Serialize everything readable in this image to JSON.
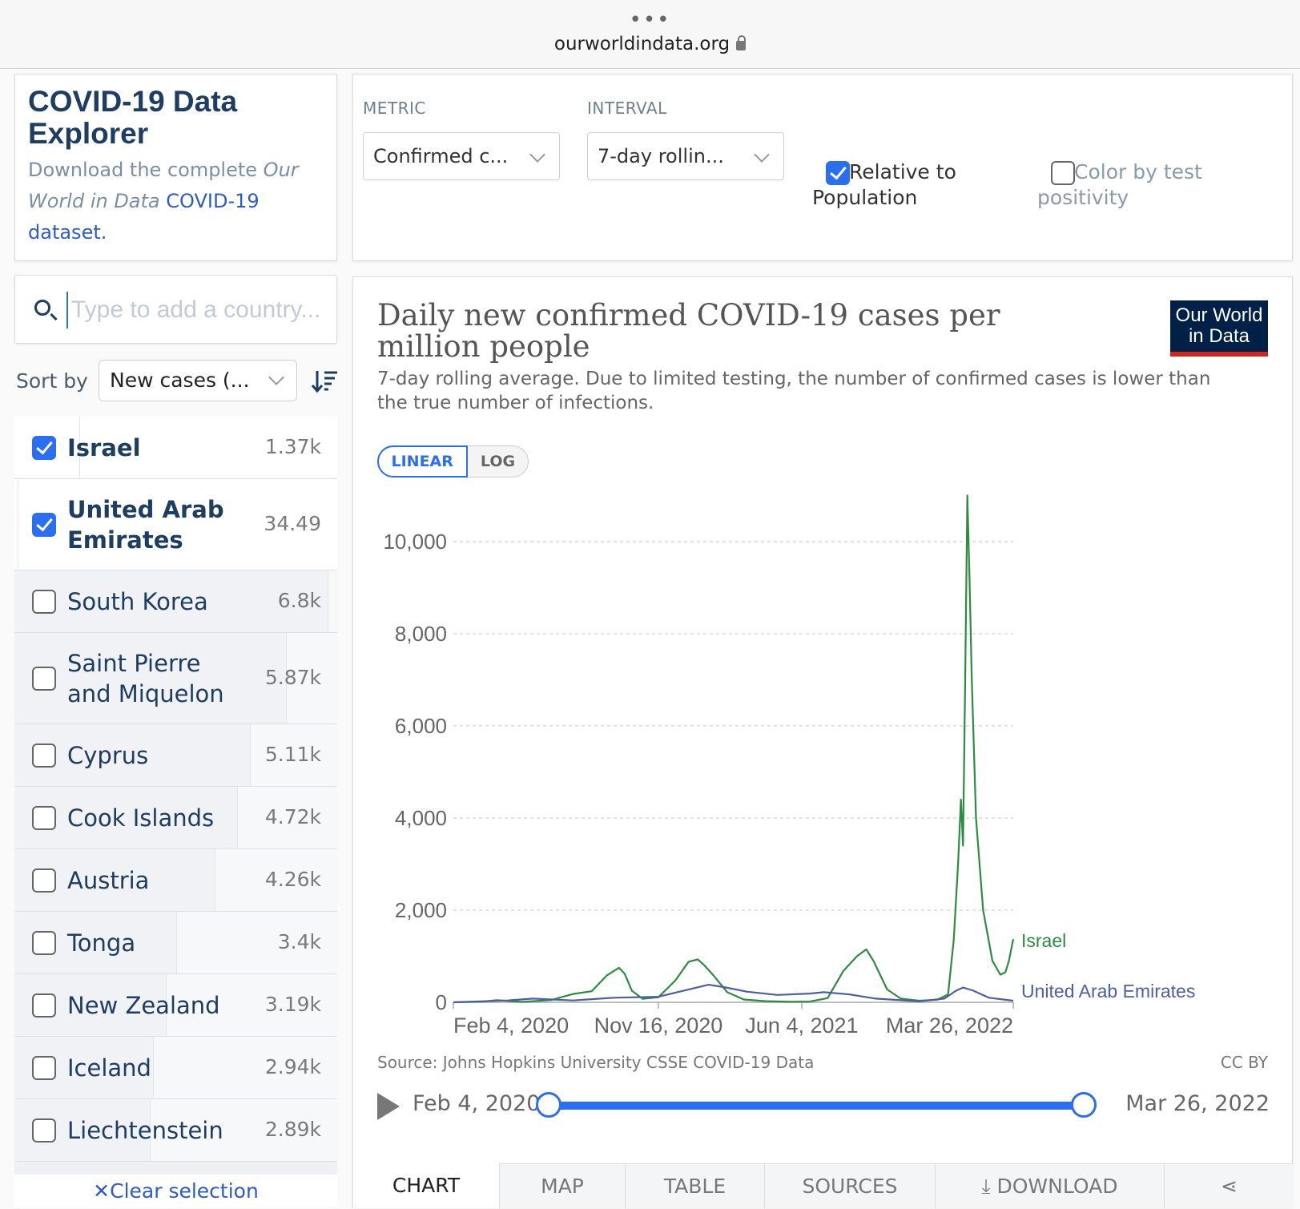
{
  "browser": {
    "url": "ourworldindata.org",
    "menu_dots": "•••"
  },
  "explorer": {
    "title": "COVID-19 Data Explorer",
    "desc_prefix": "Download the complete ",
    "desc_italic": "Our World in Data",
    "desc_link": "COVID-19 dataset."
  },
  "controls": {
    "metric_label": "METRIC",
    "metric_value": "Confirmed c...",
    "interval_label": "INTERVAL",
    "interval_value": "7-day rollin...",
    "relative_label": "Relative to Population",
    "relative_checked": true,
    "color_label": "Color by test positivity",
    "color_checked": false
  },
  "search": {
    "placeholder": "Type to add a country..."
  },
  "sort": {
    "label": "Sort by",
    "value": "New cases (..."
  },
  "countries": [
    {
      "name": "Israel",
      "value": "1.37k",
      "selected": true,
      "bar": 0.8
    },
    {
      "name": "United Arab Emirates",
      "value": "34.49",
      "selected": true,
      "bar": 0.99
    },
    {
      "name": "South Korea",
      "value": "6.8k",
      "selected": false,
      "bar": 0.03
    },
    {
      "name": "Saint Pierre and Miquelon",
      "value": "5.87k",
      "selected": false,
      "bar": 0.16
    },
    {
      "name": "Cyprus",
      "value": "5.11k",
      "selected": false,
      "bar": 0.27
    },
    {
      "name": "Cook Islands",
      "value": "4.72k",
      "selected": false,
      "bar": 0.31
    },
    {
      "name": "Austria",
      "value": "4.26k",
      "selected": false,
      "bar": 0.38
    },
    {
      "name": "Tonga",
      "value": "3.4k",
      "selected": false,
      "bar": 0.5
    },
    {
      "name": "New Zealand",
      "value": "3.19k",
      "selected": false,
      "bar": 0.53
    },
    {
      "name": "Iceland",
      "value": "2.94k",
      "selected": false,
      "bar": 0.57
    },
    {
      "name": "Liechtenstein",
      "value": "2.89k",
      "selected": false,
      "bar": 0.58
    }
  ],
  "clear_selection": "Clear selection",
  "chart": {
    "title": "Daily new confirmed COVID-19 cases per million people",
    "subtitle": "7-day rolling average. Due to limited testing, the number of confirmed cases is lower than the true number of infections.",
    "logo_line1": "Our World",
    "logo_line2": "in Data",
    "scale_linear": "LINEAR",
    "scale_log": "LOG",
    "source": "Source: Johns Hopkins University CSSE COVID-19 Data",
    "license": "CC BY",
    "timeline_start": "Feb 4, 2020",
    "timeline_end": "Mar 26, 2022",
    "tabs": [
      "CHART",
      "MAP",
      "TABLE",
      "SOURCES",
      "DOWNLOAD"
    ]
  },
  "chart_data": {
    "type": "line",
    "title": "Daily new confirmed COVID-19 cases per million people",
    "ylim": [
      0,
      10000
    ],
    "y_ticks": [
      "0",
      "2,000",
      "4,000",
      "6,000",
      "8,000",
      "10,000"
    ],
    "x_ticks": [
      "Feb 4, 2020",
      "Nov 16, 2020",
      "Jun 4, 2021",
      "Mar 26, 2022"
    ],
    "x_range": [
      "2020-02-04",
      "2022-03-26"
    ],
    "grid": true,
    "colors": {
      "Israel": "#2e8b42",
      "United Arab Emirates": "#4c5f9e"
    },
    "series": [
      {
        "name": "Israel",
        "x": [
          "2020-02-04",
          "2020-03-15",
          "2020-04-05",
          "2020-05-10",
          "2020-06-20",
          "2020-07-20",
          "2020-08-15",
          "2020-09-05",
          "2020-09-22",
          "2020-09-30",
          "2020-10-10",
          "2020-10-25",
          "2020-11-16",
          "2020-12-10",
          "2020-12-28",
          "2021-01-10",
          "2021-01-18",
          "2021-02-01",
          "2021-02-20",
          "2021-03-15",
          "2021-04-15",
          "2021-05-20",
          "2021-06-15",
          "2021-07-10",
          "2021-08-01",
          "2021-08-20",
          "2021-09-02",
          "2021-09-12",
          "2021-10-01",
          "2021-10-20",
          "2021-11-15",
          "2021-12-10",
          "2021-12-25",
          "2022-01-02",
          "2022-01-08",
          "2022-01-12",
          "2022-01-15",
          "2022-01-18",
          "2022-01-21",
          "2022-01-24",
          "2022-01-27",
          "2022-02-02",
          "2022-02-12",
          "2022-02-25",
          "2022-03-08",
          "2022-03-15",
          "2022-03-20",
          "2022-03-26"
        ],
        "values": [
          0,
          15,
          45,
          8,
          50,
          180,
          240,
          580,
          750,
          620,
          250,
          75,
          110,
          480,
          880,
          930,
          820,
          580,
          220,
          60,
          25,
          10,
          15,
          90,
          680,
          1000,
          1150,
          900,
          280,
          80,
          35,
          55,
          170,
          1350,
          3000,
          4400,
          3400,
          7000,
          11000,
          9200,
          7100,
          4000,
          2000,
          900,
          600,
          650,
          900,
          1370
        ]
      },
      {
        "name": "United Arab Emirates",
        "x": [
          "2020-02-04",
          "2020-04-20",
          "2020-05-25",
          "2020-07-20",
          "2020-09-15",
          "2020-11-16",
          "2021-01-25",
          "2021-02-15",
          "2021-03-20",
          "2021-05-01",
          "2021-06-15",
          "2021-07-05",
          "2021-08-10",
          "2021-09-15",
          "2021-11-15",
          "2021-12-20",
          "2022-01-05",
          "2022-01-15",
          "2022-01-28",
          "2022-02-20",
          "2022-03-26"
        ],
        "values": [
          0,
          40,
          80,
          40,
          100,
          120,
          380,
          330,
          230,
          160,
          190,
          220,
          170,
          80,
          20,
          80,
          250,
          320,
          260,
          100,
          34.49
        ]
      }
    ]
  }
}
